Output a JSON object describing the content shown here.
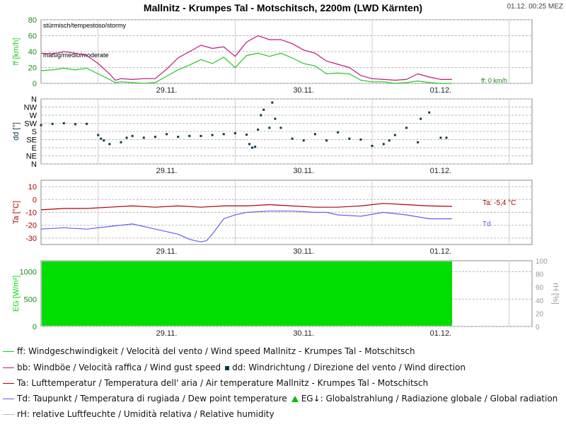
{
  "header": {
    "title": "Mallnitz - Krumpes Tal - Motschitsch, 2200m (LWD Kärnten)",
    "timestamp": "01.12. 00:25 MEZ"
  },
  "colors": {
    "wind": "#22c922",
    "gust": "#c0187a",
    "dir": "#0a3a4a",
    "temp": "#b00000",
    "dew": "#6060ee",
    "radiation": "#00dd00",
    "humidity": "#bbbbbb"
  },
  "chart_data": [
    {
      "type": "line",
      "panel": "wind",
      "ylabel": "ff [km/h]",
      "ylim": [
        0,
        80
      ],
      "yticks": [
        "0",
        "20",
        "40",
        "60",
        "80"
      ],
      "xticks": [
        "29.11.",
        "30.11.",
        "01.12."
      ],
      "zone_labels": [
        "stürmisch/tempestoso/stormy",
        "mäßig/medio/moderate"
      ],
      "annotations": [
        "ff: 0 km/h"
      ],
      "series": [
        {
          "name": "ff",
          "x": [
            0,
            2,
            4,
            6,
            8,
            10,
            12,
            13,
            14,
            16,
            18,
            20,
            22,
            24,
            26,
            28,
            30,
            32,
            34,
            36,
            38,
            40,
            42,
            44,
            46,
            48,
            50,
            52,
            54,
            56,
            58,
            60,
            62,
            64,
            66,
            68,
            70,
            72
          ],
          "values": [
            16,
            17,
            19,
            17,
            19,
            12,
            5,
            1,
            2,
            1,
            0,
            1,
            9,
            17,
            23,
            30,
            25,
            33,
            20,
            35,
            38,
            34,
            38,
            32,
            25,
            22,
            12,
            13,
            12,
            4,
            2,
            2,
            0,
            1,
            3,
            1,
            0,
            0
          ]
        },
        {
          "name": "bb",
          "x": [
            0,
            2,
            4,
            6,
            8,
            10,
            12,
            13,
            14,
            16,
            18,
            20,
            22,
            24,
            26,
            28,
            30,
            32,
            34,
            36,
            38,
            40,
            42,
            44,
            46,
            48,
            50,
            52,
            54,
            56,
            58,
            60,
            62,
            64,
            66,
            68,
            70,
            72
          ],
          "values": [
            38,
            37,
            40,
            38,
            35,
            25,
            12,
            4,
            6,
            5,
            6,
            6,
            18,
            32,
            40,
            48,
            44,
            46,
            34,
            52,
            60,
            55,
            55,
            50,
            42,
            38,
            28,
            24,
            20,
            10,
            6,
            5,
            4,
            5,
            12,
            8,
            5,
            5
          ]
        }
      ]
    },
    {
      "type": "scatter",
      "panel": "direction",
      "ylabel": "dd [°]",
      "ytick_labels": [
        "N",
        "NW",
        "W",
        "SW",
        "S",
        "SE",
        "E",
        "NE",
        "N"
      ],
      "xticks": [
        "29.11.",
        "30.11.",
        "01.12."
      ],
      "series": [
        {
          "name": "dd",
          "x": [
            0,
            2,
            4,
            6,
            8,
            10,
            10.5,
            11,
            12,
            14,
            15,
            16,
            18,
            20,
            22,
            24,
            26,
            28,
            30,
            32,
            34,
            36,
            38,
            40,
            36.5,
            37,
            37.5,
            38.5,
            39,
            40.5,
            41,
            42,
            44,
            46,
            48,
            50,
            52,
            54,
            56,
            58,
            60,
            61,
            62,
            64,
            66,
            66.5,
            68,
            70,
            71
          ],
          "values": [
            215,
            222,
            225,
            220,
            222,
            160,
            140,
            130,
            110,
            120,
            145,
            155,
            145,
            150,
            165,
            150,
            155,
            155,
            160,
            165,
            170,
            162,
            190,
            200,
            110,
            90,
            95,
            270,
            300,
            340,
            250,
            200,
            140,
            130,
            165,
            130,
            175,
            140,
            135,
            100,
            110,
            130,
            160,
            200,
            120,
            250,
            285,
            145,
            145
          ]
        }
      ]
    },
    {
      "type": "line",
      "panel": "temperature",
      "ylabel": "Ta [°C]",
      "ylim": [
        -35,
        15
      ],
      "yticks": [
        "10",
        "0",
        "-10",
        "-20",
        "-30"
      ],
      "xticks": [
        "29.11.",
        "30.11.",
        "01.12."
      ],
      "annotations": [
        "Ta: -5,4 °C",
        "Td"
      ],
      "series": [
        {
          "name": "Ta",
          "x": [
            0,
            4,
            8,
            12,
            16,
            20,
            24,
            28,
            32,
            36,
            40,
            44,
            48,
            52,
            56,
            60,
            64,
            68,
            72
          ],
          "values": [
            -8,
            -7,
            -7,
            -6,
            -5,
            -6,
            -5,
            -6,
            -5,
            -5,
            -4,
            -5,
            -6,
            -6,
            -5,
            -3,
            -4,
            -5,
            -5.4
          ]
        },
        {
          "name": "Td",
          "x": [
            0,
            4,
            8,
            12,
            16,
            20,
            24,
            26,
            28,
            29,
            30,
            32,
            34,
            36,
            40,
            44,
            48,
            50,
            52,
            56,
            60,
            64,
            68,
            72
          ],
          "values": [
            -23,
            -22,
            -23,
            -21,
            -19,
            -23,
            -27,
            -31,
            -33,
            -32,
            -27,
            -15,
            -12,
            -10,
            -9,
            -9,
            -10,
            -10,
            -12,
            -13,
            -10,
            -12,
            -15,
            -15
          ]
        }
      ]
    },
    {
      "type": "area",
      "panel": "radiation",
      "ylabel": "EG [W/m²]",
      "ylim": [
        0,
        1200
      ],
      "yticks": [
        "0",
        "500",
        "1000"
      ],
      "ylabel_right": "rH [%]",
      "yticks_right": [
        "0",
        "20",
        "40",
        "60",
        "80",
        "100"
      ],
      "xticks": [
        "29.11.",
        "30.11.",
        "01.12."
      ]
    }
  ],
  "legend": [
    {
      "key": "ff",
      "text": "ff: Windgeschwindigkeit / Velocità del vento / Wind speed  Mallnitz - Krumpes Tal - Motschitsch"
    },
    {
      "key": "bb",
      "text": "bb: Windböe / Velocità raffica / Wind gust speed",
      "extra": "dd: Windrichtung / Direzione del vento / Wind direction"
    },
    {
      "key": "Ta",
      "text": "Ta: Lufttemperatur / Temperatura dell' aria / Air temperature  Mallnitz - Krumpes Tal - Motschitsch"
    },
    {
      "key": "Td",
      "text": "Td: Taupunkt / Temperatura di rugiada / Dew point temperature",
      "extra": "EG↓: Globalstrahlung / Radiazione globale / Global radiation"
    },
    {
      "key": "rH",
      "text": "rH: relative Luftfeuchte / Umidità relativa / Relative humidity"
    }
  ]
}
